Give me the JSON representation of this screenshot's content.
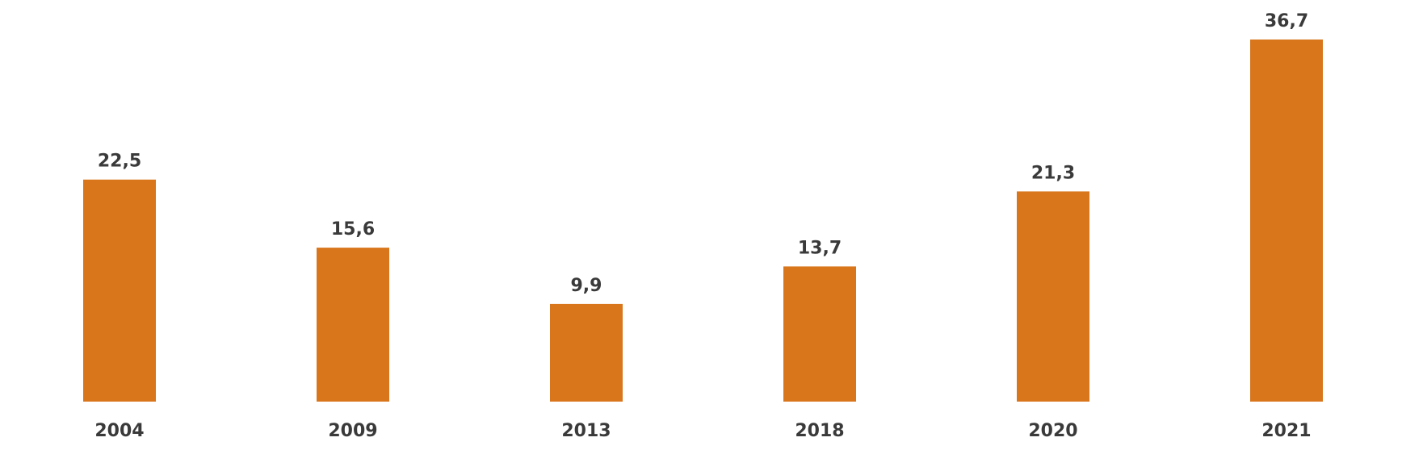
{
  "chart_data": {
    "type": "bar",
    "title": "",
    "xlabel": "",
    "ylabel": "",
    "categories": [
      "2004",
      "2009",
      "2013",
      "2018",
      "2020",
      "2021"
    ],
    "values": [
      22.5,
      15.6,
      9.9,
      13.7,
      21.3,
      36.7
    ],
    "value_labels": [
      "22,5",
      "15,6",
      "9,9",
      "13,7",
      "21,3",
      "36,7"
    ],
    "ylim": [
      0,
      36.7
    ],
    "grid": false,
    "legend": "none",
    "bar_color": "#D9761C"
  }
}
